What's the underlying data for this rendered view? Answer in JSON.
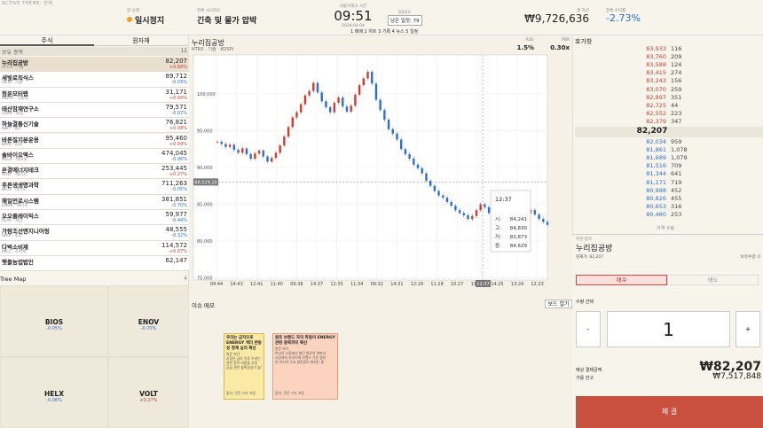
{
  "header": {
    "active_theme": "ACTIVE THEME: 전체",
    "market_label": "장 상태",
    "market_status": "일시정지",
    "scenario_label": "전체 시나리오",
    "scenario": "긴축 및 물가 압박",
    "clock_label": "서울거래소 시간",
    "clock": "09:51",
    "date": "2026.04.04",
    "speed_label": "일정속도",
    "remaining": "남은 일정: 79",
    "tabs": "1 매매 2 차트 3 기록 4 뉴스 5 일정",
    "asset_label": "총 자산",
    "asset": "₩9,726,636",
    "return_label": "전체 수익률",
    "return": "-2.73%"
  },
  "left": {
    "tabs": [
      "주식",
      "원자재"
    ],
    "holdings_label": "보유 종목",
    "holdings_count": "12",
    "stocks": [
      {
        "name": "누리집공방",
        "code": "NTRX · 기술",
        "price": "82,207",
        "change": "+0.88%"
      },
      {
        "name": "세빛로직식스",
        "code": "SILM · 기술",
        "price": "89,712",
        "change": "-0.03%"
      },
      {
        "name": "청운모터랩",
        "code": "MOTA · 자동차",
        "price": "31,171",
        "change": "+0.00%"
      },
      {
        "name": "태산잠재연구소",
        "code": "FERX · 철강",
        "price": "79,571",
        "change": "-0.07%"
      },
      {
        "name": "하늘결통신기술",
        "code": "KBIT · 통신",
        "price": "76,821",
        "change": "+0.08%"
      },
      {
        "name": "바른질지분운용",
        "code": "BRIX · 금융",
        "price": "95,460",
        "change": "+0.09%"
      },
      {
        "name": "솔바이오엑스",
        "code": "HELX · 바이오",
        "price": "474,045",
        "change": "-0.06%"
      },
      {
        "name": "온결에너지테크",
        "code": "VOLT · 에너지",
        "price": "253,445",
        "change": "+0.27%"
      },
      {
        "name": "푸른생생명과학",
        "code": "BIOS · 바이오",
        "price": "711,263",
        "change": "-0.05%"
      },
      {
        "name": "해일먼로시스템",
        "code": "ENOV · 에너지",
        "price": "381,851",
        "change": "-0.70%"
      },
      {
        "name": "오오플레이믹스",
        "code": "PLAY · 게임",
        "price": "59,977",
        "change": "-0.44%"
      },
      {
        "name": "가람조선엔지니어링",
        "code": "SHIP · 조선",
        "price": "48,555",
        "change": "-0.32%"
      },
      {
        "name": "다벅소비재",
        "code": "MILL · 소비재",
        "price": "114,572",
        "change": "+0.07%"
      },
      {
        "name": "햇들농업법인",
        "price": "62,147"
      }
    ],
    "treemap_label": "Tree Map",
    "treemap_count": "4",
    "treemap": [
      {
        "code": "BIOS",
        "change": "-0.05%"
      },
      {
        "code": "ENOV",
        "change": "-0.70%"
      },
      {
        "code": "HELX",
        "change": "-0.06%"
      },
      {
        "code": "VOLT",
        "change": "+0.27%"
      }
    ]
  },
  "chart": {
    "title": "누리집공방",
    "subtitle": "NTRX · 기술 · KOSPI",
    "stats": [
      {
        "label": "ROE",
        "value": "1.5%"
      },
      {
        "label": "PBR",
        "value": "0.30x"
      }
    ],
    "closes": [
      93500,
      93200,
      92800,
      93100,
      92400,
      92000,
      92600,
      91800,
      91200,
      91900,
      92300,
      91500,
      90800,
      91300,
      92000,
      93000,
      94200,
      95500,
      96800,
      97500,
      98600,
      99800,
      100400,
      101500,
      100200,
      99000,
      98200,
      97500,
      98800,
      99500,
      98300,
      97600,
      98400,
      99900,
      101200,
      102100,
      103000,
      101400,
      99200,
      97800,
      96500,
      95200,
      94600,
      93800,
      92500,
      91800,
      91200,
      90400,
      89900,
      89200,
      88200,
      87500,
      86800,
      86200,
      85900,
      85300,
      84800,
      84200,
      83800,
      83500,
      83000,
      83400,
      84200,
      85000,
      84600,
      83800,
      83200,
      82900,
      83500,
      83900,
      84300,
      84000,
      83600,
      83100,
      83800,
      84200,
      83600,
      83000,
      82600,
      82207
    ],
    "ylim": [
      74700,
      105300
    ],
    "yticks": [
      {
        "value": 75000,
        "label": "75,000"
      },
      {
        "value": 80000,
        "label": "80,000"
      },
      {
        "value": 85000,
        "label": "85,000"
      },
      {
        "value": 90000,
        "label": "90,000"
      },
      {
        "value": 95000,
        "label": "95,000"
      },
      {
        "value": 100000,
        "label": "100,000"
      }
    ],
    "xticks": [
      "09:44",
      "14:43",
      "12:41",
      "11:40",
      "09:38",
      "14:37",
      "12:35",
      "11:34",
      "09:32",
      "14:31",
      "12:29",
      "11:28",
      "10:27",
      "11:26",
      "14:25",
      "13:24",
      "12:23"
    ],
    "crosshair": {
      "value": 88029.2,
      "label": "88,029.20",
      "x_label": "12:37"
    },
    "tooltip": {
      "title": "12:37",
      "rows": [
        {
          "label": "시:",
          "value": "84,241"
        },
        {
          "label": "고:",
          "value": "84,830"
        },
        {
          "label": "저:",
          "value": "83,873"
        },
        {
          "label": "종:",
          "value": "84,629"
        }
      ]
    }
  },
  "memo": {
    "title": "이슈 메모",
    "button": "보드 열기",
    "cards": [
      {
        "title": "우리는 금작으로 ENERGY 섹터 변동성 경계 심리 확산",
        "body": [
          "원문 보기",
          "시장은 금리 이후 우리는 원산",
          "관련 종목 비중을 조정",
          "공급 관련 불확실성이 높아진"
        ],
        "source": "출처: 전문 기사 포털"
      },
      {
        "title": "원유 브랜드 차익 파동이 ENERGY 관련 종목까지 확산",
        "body": [
          "원문 보기",
          "아시아 시장에서 발단 원유의 여파가",
          "시장에서 지식이며 브랜드 기준 원유",
          "의 아시아 수요 향후움이 퍼지는 중"
        ],
        "source": "출처: 전문 기사 포털"
      }
    ]
  },
  "orderbook": {
    "title": "호가창",
    "asks": [
      [
        "83,933",
        "116"
      ],
      [
        "83,760",
        "209"
      ],
      [
        "83,588",
        "124"
      ],
      [
        "83,415",
        "274"
      ],
      [
        "83,243",
        "156"
      ],
      [
        "83,070",
        "259"
      ],
      [
        "82,897",
        "351"
      ],
      [
        "82,725",
        "44"
      ],
      [
        "82,552",
        "223"
      ],
      [
        "82,379",
        "347"
      ]
    ],
    "current": "82,207",
    "bids": [
      [
        "82,034",
        "959"
      ],
      [
        "81,861",
        "1,078"
      ],
      [
        "81,689",
        "1,079"
      ],
      [
        "81,516",
        "709"
      ],
      [
        "81,344",
        "641"
      ],
      [
        "81,171",
        "719"
      ],
      [
        "80,998",
        "452"
      ],
      [
        "80,826",
        "455"
      ],
      [
        "80,653",
        "316"
      ],
      [
        "80,480",
        "253"
      ]
    ],
    "footer": "가격 수량"
  },
  "order": {
    "label": "주문 종목",
    "name": "누리집공방",
    "price": "현재가: 82,207",
    "holding": "보유수량: 0",
    "tabs": [
      "매수",
      "매도"
    ],
    "qty_label": "수량 선택",
    "minus": "-",
    "qty": "1",
    "plus": "+",
    "total_label": "예상 결제금액",
    "total": "₩82,207",
    "cash_label": "가용 잔고",
    "cash": "₩7,517,848",
    "submit": "체 결"
  }
}
